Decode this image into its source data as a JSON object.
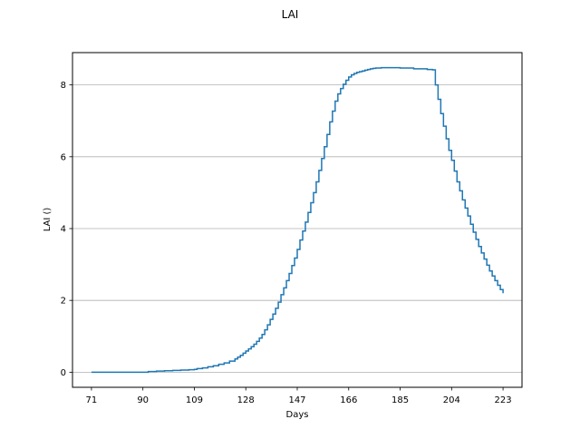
{
  "chart_data": {
    "type": "line",
    "title": "LAI",
    "xlabel": "Days",
    "ylabel": "LAI ()",
    "xlim": [
      64,
      230
    ],
    "ylim": [
      -0.42,
      8.9
    ],
    "x_ticks": [
      71,
      90,
      109,
      128,
      147,
      166,
      185,
      204,
      223
    ],
    "y_ticks": [
      0,
      2,
      4,
      6,
      8
    ],
    "grid": "horizontal",
    "step": true,
    "line_color": "#1f77b4",
    "series": [
      {
        "x": [
          71,
          80,
          85,
          90,
          92,
          95,
          98,
          101,
          104,
          107,
          109,
          110,
          112,
          114,
          116,
          118,
          120,
          122,
          124,
          125,
          126,
          127,
          128,
          129,
          130,
          131,
          132,
          133,
          134,
          135,
          136,
          137,
          138,
          139,
          140,
          141,
          142,
          143,
          144,
          145,
          146,
          147,
          148,
          149,
          150,
          151,
          152,
          153,
          154,
          155,
          156,
          157,
          158,
          159,
          160,
          161,
          162,
          163,
          164,
          165,
          166,
          167,
          168,
          169,
          170,
          171,
          172,
          173,
          174,
          175,
          176,
          178,
          180,
          185,
          190,
          195,
          197,
          198,
          199,
          200,
          201,
          202,
          203,
          204,
          205,
          206,
          207,
          208,
          209,
          210,
          211,
          212,
          213,
          214,
          215,
          216,
          217,
          218,
          219,
          220,
          221,
          222,
          223
        ],
        "y": [
          0.0,
          0.0,
          0.0,
          0.0,
          0.02,
          0.03,
          0.04,
          0.05,
          0.06,
          0.07,
          0.08,
          0.1,
          0.12,
          0.15,
          0.18,
          0.22,
          0.26,
          0.31,
          0.37,
          0.42,
          0.47,
          0.53,
          0.59,
          0.65,
          0.71,
          0.78,
          0.86,
          0.95,
          1.05,
          1.18,
          1.32,
          1.47,
          1.62,
          1.78,
          1.95,
          2.16,
          2.35,
          2.55,
          2.75,
          2.97,
          3.18,
          3.42,
          3.68,
          3.93,
          4.18,
          4.45,
          4.72,
          5.0,
          5.3,
          5.62,
          5.95,
          6.28,
          6.62,
          6.97,
          7.27,
          7.55,
          7.75,
          7.9,
          8.02,
          8.13,
          8.22,
          8.28,
          8.32,
          8.35,
          8.37,
          8.39,
          8.41,
          8.43,
          8.45,
          8.46,
          8.47,
          8.48,
          8.48,
          8.47,
          8.45,
          8.43,
          8.42,
          8.0,
          7.6,
          7.2,
          6.85,
          6.5,
          6.18,
          5.9,
          5.6,
          5.3,
          5.05,
          4.8,
          4.57,
          4.35,
          4.12,
          3.9,
          3.7,
          3.5,
          3.32,
          3.15,
          2.98,
          2.82,
          2.68,
          2.55,
          2.42,
          2.3,
          2.2
        ]
      }
    ]
  }
}
